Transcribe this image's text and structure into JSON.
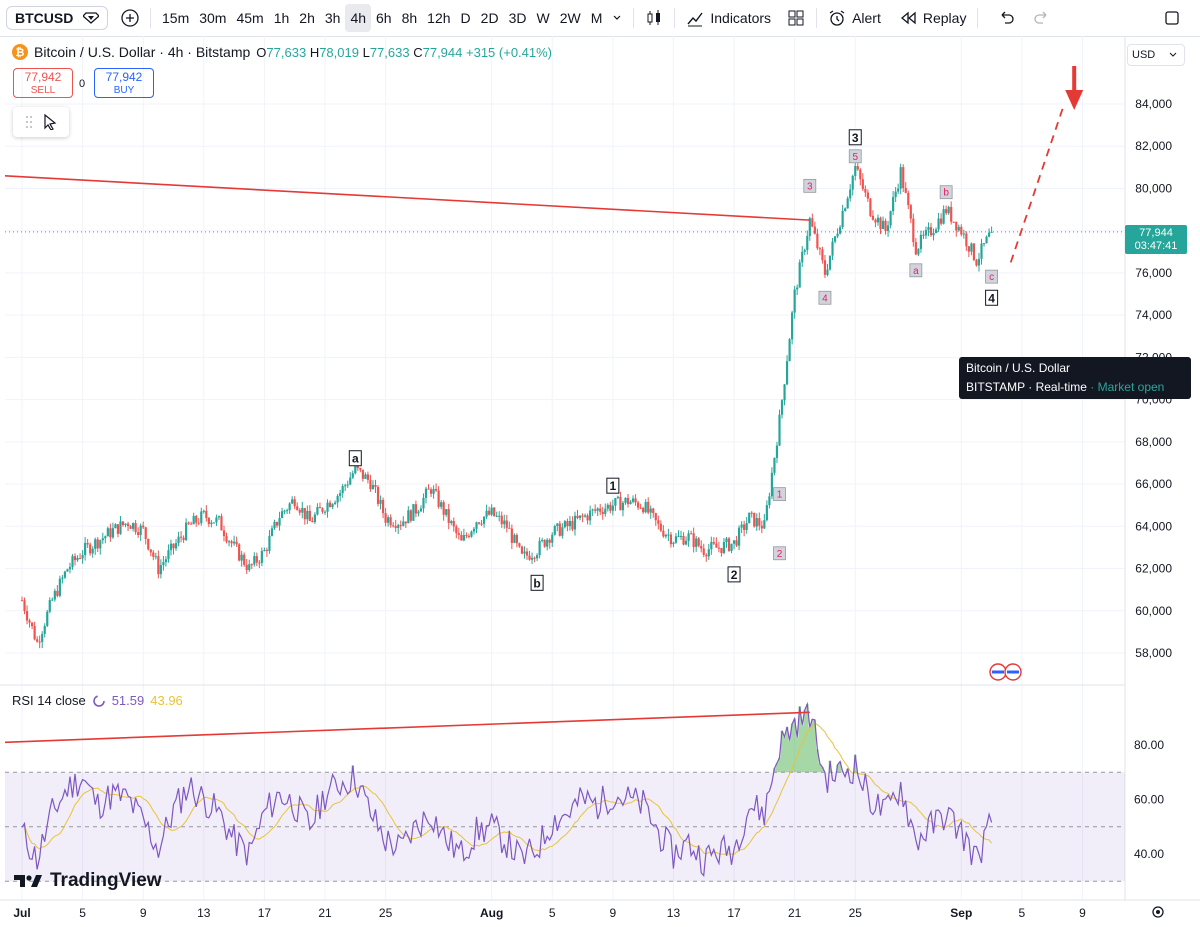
{
  "toolbar": {
    "symbol": "BTCUSD",
    "intervals": [
      "15m",
      "30m",
      "45m",
      "1h",
      "2h",
      "3h",
      "4h",
      "6h",
      "8h",
      "12h",
      "D",
      "2D",
      "3D",
      "W",
      "2W",
      "M"
    ],
    "active_interval": "4h",
    "indicators_label": "Indicators",
    "alert_label": "Alert",
    "replay_label": "Replay"
  },
  "legend": {
    "title": "Bitcoin / U.S. Dollar · 4h · Bitstamp",
    "o_label": "O",
    "o_value": "77,633",
    "h_label": "H",
    "h_value": "78,019",
    "l_label": "L",
    "l_value": "77,633",
    "c_label": "C",
    "c_value": "77,944",
    "change": "+315 (+0.41%)"
  },
  "trade": {
    "sell_price": "77,942",
    "sell_label": "SELL",
    "spread": "0",
    "buy_price": "77,942",
    "buy_label": "BUY"
  },
  "price_scale": {
    "currency": "USD",
    "ticks": [
      "84,000",
      "82,000",
      "80,000",
      "78,000",
      "76,000",
      "74,000",
      "72,000",
      "70,000",
      "68,000",
      "66,000",
      "64,000",
      "62,000",
      "60,000",
      "58,000"
    ],
    "last_price": "77,944",
    "countdown": "03:47:41"
  },
  "tooltip": {
    "title": "Bitcoin / U.S. Dollar",
    "exchange": "BITSTAMP",
    "feed": "Real-time",
    "status": "Market open"
  },
  "rsi": {
    "label": "RSI 14 close",
    "value": "51.59",
    "ma_value": "43.96",
    "ticks": [
      "80.00",
      "60.00",
      "40.00"
    ]
  },
  "time_axis": [
    "Jul",
    "5",
    "9",
    "13",
    "17",
    "21",
    "25",
    "Aug",
    "5",
    "9",
    "13",
    "17",
    "21",
    "25",
    "Sep",
    "5",
    "9"
  ],
  "branding": "TradingView",
  "colors": {
    "up": "#26a69a",
    "down": "#ef5350",
    "rsi": "#7e57c2",
    "rsi_ma": "#e8c33c",
    "trendline": "#e53935"
  },
  "chart_data": {
    "type": "candlestick",
    "symbol": "BTCUSD",
    "interval": "4h",
    "ylim": [
      57000,
      86000
    ],
    "price_path": [
      {
        "date": "Jul 1",
        "price": 60500
      },
      {
        "date": "Jul 2",
        "price": 58500
      },
      {
        "date": "Jul 3",
        "price": 60500
      },
      {
        "date": "Jul 4",
        "price": 62000
      },
      {
        "date": "Jul 5",
        "price": 62800
      },
      {
        "date": "Jul 6",
        "price": 63300
      },
      {
        "date": "Jul 7",
        "price": 63800
      },
      {
        "date": "Jul 8",
        "price": 64200
      },
      {
        "date": "Jul 9",
        "price": 63800
      },
      {
        "date": "Jul 10",
        "price": 62000
      },
      {
        "date": "Jul 11",
        "price": 63000
      },
      {
        "date": "Jul 12",
        "price": 64000
      },
      {
        "date": "Jul 13",
        "price": 64500
      },
      {
        "date": "Jul 14",
        "price": 64200
      },
      {
        "date": "Jul 15",
        "price": 63000
      },
      {
        "date": "Jul 16",
        "price": 62000
      },
      {
        "date": "Jul 17",
        "price": 62800
      },
      {
        "date": "Jul 18",
        "price": 64500
      },
      {
        "date": "Jul 19",
        "price": 65300
      },
      {
        "date": "Jul 20",
        "price": 64200
      },
      {
        "date": "Jul 21",
        "price": 65000
      },
      {
        "date": "Jul 22",
        "price": 65600
      },
      {
        "date": "Jul 23",
        "price": 66700
      },
      {
        "date": "Jul 24",
        "price": 66100
      },
      {
        "date": "Jul 25",
        "price": 64400
      },
      {
        "date": "Jul 26",
        "price": 64200
      },
      {
        "date": "Jul 27",
        "price": 64800
      },
      {
        "date": "Jul 28",
        "price": 65800
      },
      {
        "date": "Jul 29",
        "price": 64500
      },
      {
        "date": "Jul 30",
        "price": 63200
      },
      {
        "date": "Jul 31",
        "price": 64300
      },
      {
        "date": "Aug 1",
        "price": 64600
      },
      {
        "date": "Aug 2",
        "price": 64000
      },
      {
        "date": "Aug 3",
        "price": 62500
      },
      {
        "date": "Aug 4",
        "price": 62900
      },
      {
        "date": "Aug 5",
        "price": 63700
      },
      {
        "date": "Aug 6",
        "price": 64000
      },
      {
        "date": "Aug 7",
        "price": 64400
      },
      {
        "date": "Aug 8",
        "price": 64800
      },
      {
        "date": "Aug 9",
        "price": 65000
      },
      {
        "date": "Aug 10",
        "price": 65200
      },
      {
        "date": "Aug 11",
        "price": 65000
      },
      {
        "date": "Aug 12",
        "price": 64000
      },
      {
        "date": "Aug 13",
        "price": 63400
      },
      {
        "date": "Aug 14",
        "price": 63500
      },
      {
        "date": "Aug 15",
        "price": 62900
      },
      {
        "date": "Aug 16",
        "price": 63000
      },
      {
        "date": "Aug 17",
        "price": 63200
      },
      {
        "date": "Aug 18",
        "price": 64400
      },
      {
        "date": "Aug 19",
        "price": 64000
      },
      {
        "date": "Aug 20",
        "price": 69000
      },
      {
        "date": "Aug 21",
        "price": 75000
      },
      {
        "date": "Aug 22",
        "price": 78500
      },
      {
        "date": "Aug 23",
        "price": 76000
      },
      {
        "date": "Aug 24",
        "price": 78500
      },
      {
        "date": "Aug 25",
        "price": 81000
      },
      {
        "date": "Aug 26",
        "price": 79000
      },
      {
        "date": "Aug 27",
        "price": 78000
      },
      {
        "date": "Aug 28",
        "price": 80800
      },
      {
        "date": "Aug 29",
        "price": 77200
      },
      {
        "date": "Aug 30",
        "price": 78000
      },
      {
        "date": "Aug 31",
        "price": 79000
      },
      {
        "date": "Sep 1",
        "price": 78000
      },
      {
        "date": "Sep 2",
        "price": 76600
      },
      {
        "date": "Sep 3",
        "price": 77944
      }
    ],
    "projection": [
      {
        "date": "Sep 4",
        "price": 76500
      },
      {
        "date": "Sep 7",
        "price": 84000
      }
    ],
    "annotations": [
      {
        "label": "a",
        "date": "Jul 23",
        "price": 67200,
        "style": "black"
      },
      {
        "label": "b",
        "date": "Aug 4",
        "price": 61300,
        "style": "black"
      },
      {
        "label": "1",
        "date": "Aug 9",
        "price": 65900,
        "style": "black"
      },
      {
        "label": "2",
        "date": "Aug 17",
        "price": 61700,
        "style": "black"
      },
      {
        "label": "3",
        "date": "Aug 25",
        "price": 82400,
        "style": "black"
      },
      {
        "label": "4",
        "date": "Sep 3",
        "price": 74800,
        "style": "black"
      },
      {
        "label": "1",
        "date": "Aug 20",
        "price": 65500,
        "style": "pink"
      },
      {
        "label": "2",
        "date": "Aug 20",
        "price": 62700,
        "style": "pink"
      },
      {
        "label": "3",
        "date": "Aug 22",
        "price": 80100,
        "style": "pink"
      },
      {
        "label": "4",
        "date": "Aug 23",
        "price": 74800,
        "style": "pink"
      },
      {
        "label": "5",
        "date": "Aug 25",
        "price": 81500,
        "style": "pink"
      },
      {
        "label": "a",
        "date": "Aug 29",
        "price": 76100,
        "style": "pink"
      },
      {
        "label": "b",
        "date": "Aug 31",
        "price": 79800,
        "style": "pink"
      },
      {
        "label": "c",
        "date": "Sep 3",
        "price": 75800,
        "style": "pink"
      }
    ],
    "trendline": {
      "start": {
        "date": "Jul 1",
        "price": 80600
      },
      "end": {
        "date": "Aug 22",
        "price": 78500
      }
    },
    "rsi": {
      "ylim": [
        28,
        98
      ],
      "overbought": 70,
      "oversold": 30,
      "mid": 50,
      "path": [
        {
          "date": "Jul 1",
          "value": 48
        },
        {
          "date": "Jul 2",
          "value": 38
        },
        {
          "date": "Jul 3",
          "value": 55
        },
        {
          "date": "Jul 4",
          "value": 64
        },
        {
          "date": "Jul 5",
          "value": 68
        },
        {
          "date": "Jul 6",
          "value": 58
        },
        {
          "date": "Jul 7",
          "value": 62
        },
        {
          "date": "Jul 8",
          "value": 60
        },
        {
          "date": "Jul 9",
          "value": 52
        },
        {
          "date": "Jul 10",
          "value": 42
        },
        {
          "date": "Jul 11",
          "value": 56
        },
        {
          "date": "Jul 12",
          "value": 65
        },
        {
          "date": "Jul 13",
          "value": 60
        },
        {
          "date": "Jul 14",
          "value": 55
        },
        {
          "date": "Jul 15",
          "value": 45
        },
        {
          "date": "Jul 16",
          "value": 40
        },
        {
          "date": "Jul 17",
          "value": 55
        },
        {
          "date": "Jul 18",
          "value": 62
        },
        {
          "date": "Jul 19",
          "value": 58
        },
        {
          "date": "Jul 20",
          "value": 50
        },
        {
          "date": "Jul 21",
          "value": 62
        },
        {
          "date": "Jul 22",
          "value": 66
        },
        {
          "date": "Jul 23",
          "value": 68
        },
        {
          "date": "Jul 24",
          "value": 55
        },
        {
          "date": "Jul 25",
          "value": 45
        },
        {
          "date": "Jul 26",
          "value": 42
        },
        {
          "date": "Jul 27",
          "value": 50
        },
        {
          "date": "Jul 28",
          "value": 55
        },
        {
          "date": "Jul 29",
          "value": 45
        },
        {
          "date": "Jul 30",
          "value": 40
        },
        {
          "date": "Jul 31",
          "value": 48
        },
        {
          "date": "Aug 1",
          "value": 50
        },
        {
          "date": "Aug 2",
          "value": 44
        },
        {
          "date": "Aug 3",
          "value": 38
        },
        {
          "date": "Aug 4",
          "value": 42
        },
        {
          "date": "Aug 5",
          "value": 52
        },
        {
          "date": "Aug 6",
          "value": 55
        },
        {
          "date": "Aug 7",
          "value": 60
        },
        {
          "date": "Aug 8",
          "value": 58
        },
        {
          "date": "Aug 9",
          "value": 62
        },
        {
          "date": "Aug 10",
          "value": 60
        },
        {
          "date": "Aug 11",
          "value": 58
        },
        {
          "date": "Aug 12",
          "value": 48
        },
        {
          "date": "Aug 13",
          "value": 40
        },
        {
          "date": "Aug 14",
          "value": 44
        },
        {
          "date": "Aug 15",
          "value": 38
        },
        {
          "date": "Aug 16",
          "value": 41
        },
        {
          "date": "Aug 17",
          "value": 42
        },
        {
          "date": "Aug 18",
          "value": 58
        },
        {
          "date": "Aug 19",
          "value": 55
        },
        {
          "date": "Aug 20",
          "value": 80
        },
        {
          "date": "Aug 21",
          "value": 88
        },
        {
          "date": "Aug 22",
          "value": 92
        },
        {
          "date": "Aug 23",
          "value": 68
        },
        {
          "date": "Aug 24",
          "value": 70
        },
        {
          "date": "Aug 25",
          "value": 72
        },
        {
          "date": "Aug 26",
          "value": 60
        },
        {
          "date": "Aug 27",
          "value": 55
        },
        {
          "date": "Aug 28",
          "value": 65
        },
        {
          "date": "Aug 29",
          "value": 45
        },
        {
          "date": "Aug 30",
          "value": 50
        },
        {
          "date": "Aug 31",
          "value": 55
        },
        {
          "date": "Sep 1",
          "value": 48
        },
        {
          "date": "Sep 2",
          "value": 38
        },
        {
          "date": "Sep 3",
          "value": 51.59
        }
      ],
      "ma_end": 43.96,
      "trendline": {
        "start": {
          "date": "Jul 1",
          "value": 81
        },
        "end": {
          "date": "Aug 22",
          "value": 92
        }
      }
    }
  }
}
